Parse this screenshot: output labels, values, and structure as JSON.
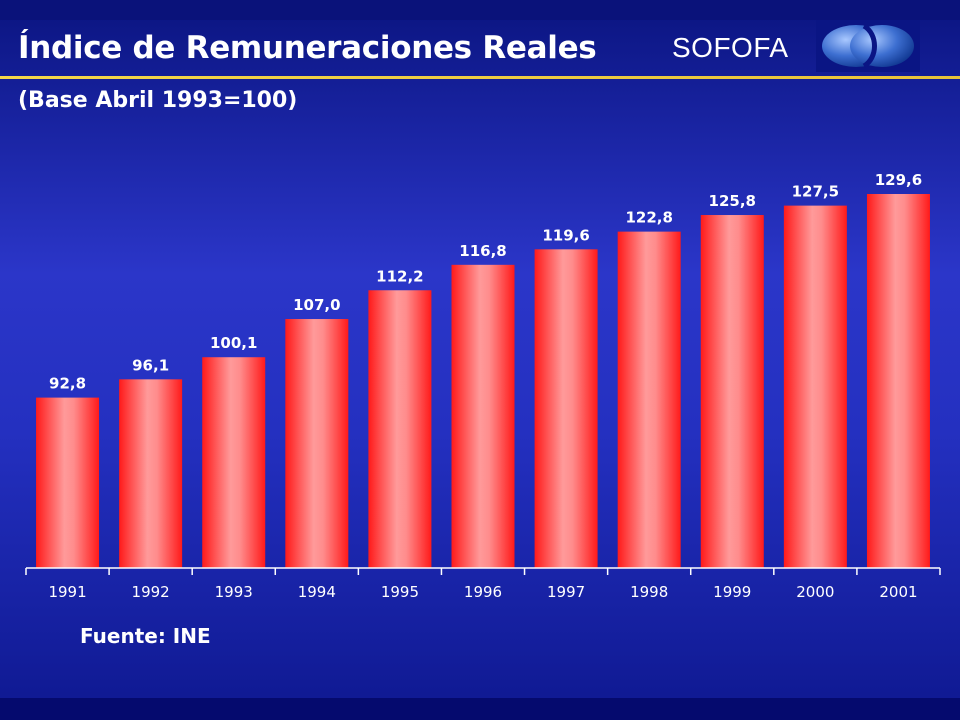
{
  "header": {
    "title": "Índice de Remuneraciones Reales",
    "subtitle": "(Base Abril 1993=100)",
    "brand": "SOFOFA"
  },
  "footer": {
    "source": "Fuente: INE"
  },
  "colors": {
    "background": "#2b36c9",
    "bar": "#ff3333",
    "bar_highlight": "#ff9a9a",
    "title_rule": "#f5d84a",
    "text": "#ffffff"
  },
  "chart_data": {
    "type": "bar",
    "title": "Índice de Remuneraciones Reales",
    "subtitle": "(Base Abril 1993=100)",
    "categories": [
      "1991",
      "1992",
      "1993",
      "1994",
      "1995",
      "1996",
      "1997",
      "1998",
      "1999",
      "2000",
      "2001"
    ],
    "values": [
      92.8,
      96.1,
      100.1,
      107.0,
      112.2,
      116.8,
      119.6,
      122.8,
      125.8,
      127.5,
      129.6
    ],
    "value_labels": [
      "92,8",
      "96,1",
      "100,1",
      "107,0",
      "112,2",
      "116,8",
      "119,6",
      "122,8",
      "125,8",
      "127,5",
      "129,6"
    ],
    "xlabel": "",
    "ylabel": "",
    "ylim": [
      62,
      135
    ],
    "grid": false,
    "legend": "none",
    "data_labels": "above bars"
  }
}
